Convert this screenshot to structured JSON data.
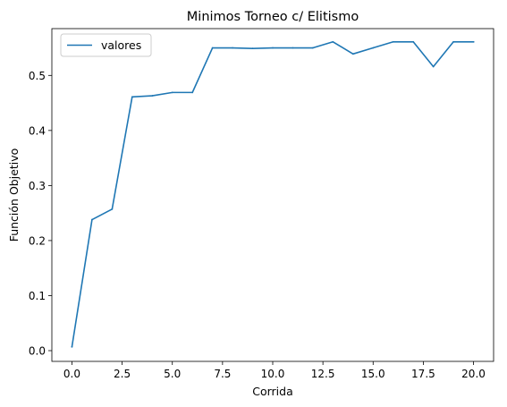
{
  "chart_data": {
    "type": "line",
    "title": "Minimos Torneo c/ Elitismo",
    "xlabel": "Corrida",
    "ylabel": "Función Objetivo",
    "xlim": [
      -1.0,
      21.0
    ],
    "ylim": [
      -0.0195,
      0.585
    ],
    "xticks": [
      0.0,
      2.5,
      5.0,
      7.5,
      10.0,
      12.5,
      15.0,
      17.5,
      20.0
    ],
    "xtick_labels": [
      "0.0",
      "2.5",
      "5.0",
      "7.5",
      "10.0",
      "12.5",
      "15.0",
      "17.5",
      "20.0"
    ],
    "yticks": [
      0.0,
      0.1,
      0.2,
      0.3,
      0.4,
      0.5
    ],
    "ytick_labels": [
      "0.0",
      "0.1",
      "0.2",
      "0.3",
      "0.4",
      "0.5"
    ],
    "grid": false,
    "legend_position": "upper-left",
    "series": [
      {
        "name": "valores",
        "color": "#1f77b4",
        "x": [
          0,
          1,
          2,
          3,
          4,
          5,
          6,
          7,
          8,
          9,
          10,
          11,
          12,
          13,
          14,
          15,
          16,
          17,
          18,
          19,
          20
        ],
        "values": [
          0.007,
          0.238,
          0.257,
          0.461,
          0.463,
          0.469,
          0.469,
          0.55,
          0.55,
          0.549,
          0.55,
          0.55,
          0.55,
          0.561,
          0.539,
          0.55,
          0.561,
          0.561,
          0.516,
          0.561,
          0.561
        ]
      }
    ]
  }
}
